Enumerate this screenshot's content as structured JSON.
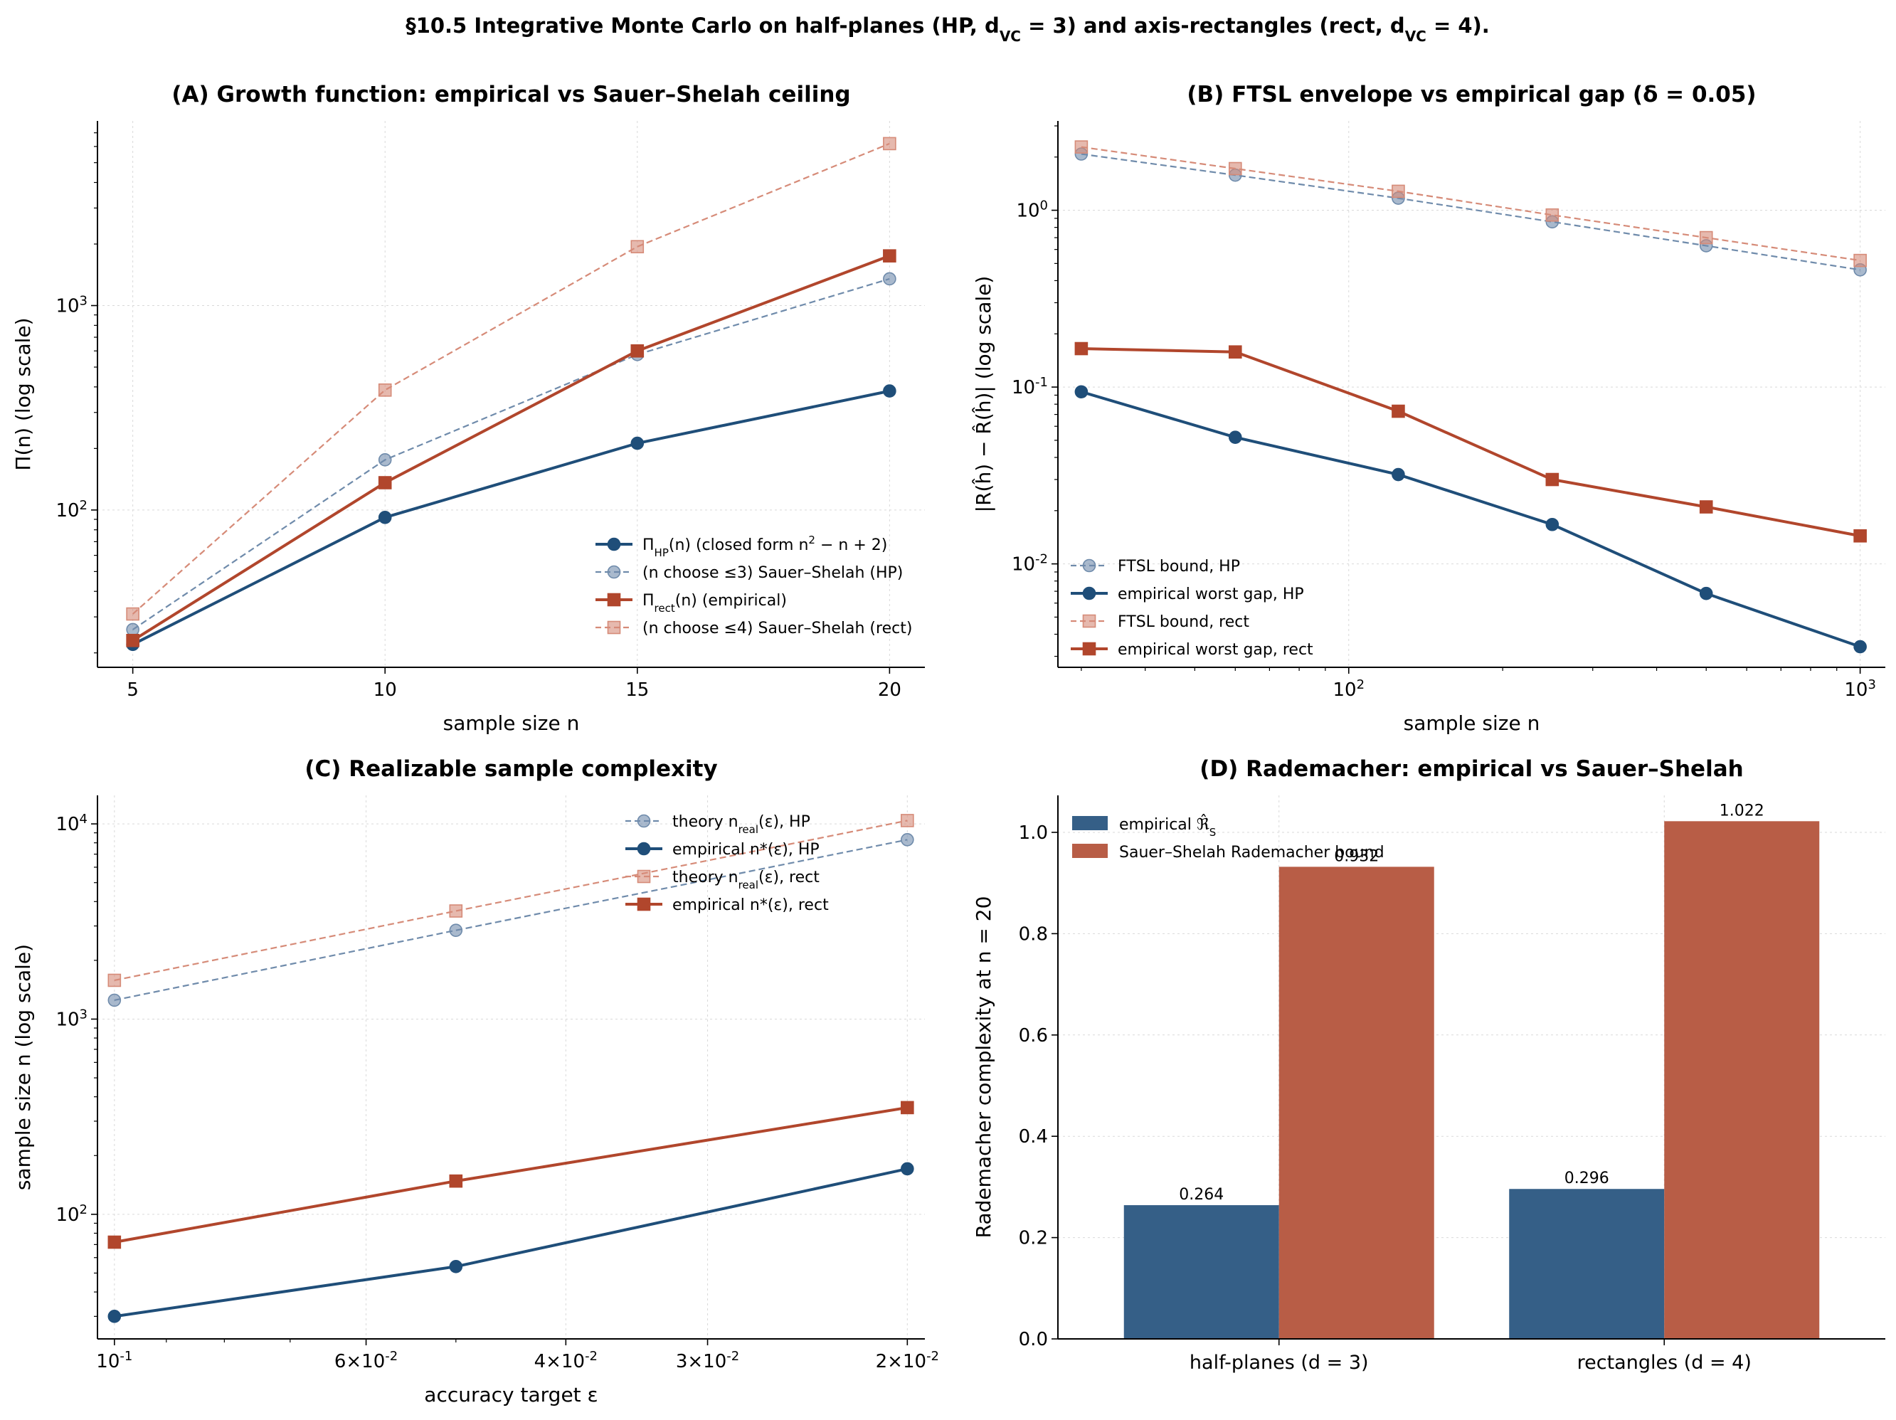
{
  "figure_title": "§10.5  Integrative Monte Carlo on half-planes (HP, d_VC = 3) and axis-rectangles (rect, d_VC = 4).",
  "colors": {
    "hp": "#1f4e79",
    "rect": "#b1462c",
    "hp_light": "#6f8bab",
    "rect_light": "#d68b78",
    "bar_hp": "#355f87",
    "bar_rect": "#b85d46"
  },
  "chart_data": [
    {
      "id": "A",
      "type": "line",
      "title": "(A) Growth function: empirical vs Sauer–Shelah ceiling",
      "xlabel": "sample size n",
      "ylabel": "Π(n)  (log scale)",
      "xscale": "linear",
      "yscale": "log",
      "xlim": [
        4.3,
        20.7
      ],
      "ylim": [
        17,
        8000
      ],
      "xticks": [
        5,
        10,
        15,
        20
      ],
      "xtick_labels": [
        "5",
        "10",
        "15",
        "20"
      ],
      "yticks": [
        100,
        1000
      ],
      "ytick_labels": [
        "10^2",
        "10^3"
      ],
      "grid": true,
      "legend_position": "lower-right",
      "series": [
        {
          "name": "Π_HP(n)  (closed form n^2 − n + 2)",
          "style": "solid",
          "marker": "circle",
          "color": "#1f4e79",
          "x": [
            5,
            10,
            15,
            20
          ],
          "y": [
            22,
            92,
            212,
            382
          ]
        },
        {
          "name": "(n choose ≤3)  Sauer–Shelah (HP)",
          "style": "dashed",
          "marker": "circle",
          "color": "#6f8bab",
          "x": [
            5,
            10,
            15,
            20
          ],
          "y": [
            26,
            176,
            576,
            1351
          ]
        },
        {
          "name": "Π_rect(n)  (empirical)",
          "style": "solid",
          "marker": "square",
          "color": "#b1462c",
          "x": [
            5,
            10,
            15,
            20
          ],
          "y": [
            23,
            136,
            600,
            1750
          ]
        },
        {
          "name": "(n choose ≤4)  Sauer–Shelah (rect)",
          "style": "dashed",
          "marker": "square",
          "color": "#d68b78",
          "x": [
            5,
            10,
            15,
            20
          ],
          "y": [
            31,
            386,
            1941,
            6196
          ]
        }
      ]
    },
    {
      "id": "B",
      "type": "line",
      "title": "(B) FTSL envelope vs empirical gap (δ = 0.05)",
      "xlabel": "sample size n",
      "ylabel": "|R(ĥ) − R̂(ĥ)|  (log scale)",
      "xscale": "log",
      "yscale": "log",
      "xlim": [
        27,
        1120
      ],
      "ylim": [
        0.0026,
        3.2
      ],
      "xticks": [
        100,
        1000
      ],
      "xtick_labels": [
        "10^2",
        "10^3"
      ],
      "yticks": [
        0.01,
        0.1,
        1
      ],
      "ytick_labels": [
        "10^-2",
        "10^-1",
        "10^0"
      ],
      "grid": true,
      "legend_position": "lower-left",
      "series": [
        {
          "name": "FTSL bound, HP",
          "style": "dashed",
          "marker": "circle",
          "color": "#6f8bab",
          "x": [
            30,
            60,
            125,
            250,
            500,
            1000
          ],
          "y": [
            2.08,
            1.58,
            1.17,
            0.86,
            0.63,
            0.46
          ]
        },
        {
          "name": "empirical worst gap, HP",
          "style": "solid",
          "marker": "circle",
          "color": "#1f4e79",
          "x": [
            30,
            60,
            125,
            250,
            500,
            1000
          ],
          "y": [
            0.094,
            0.052,
            0.032,
            0.0167,
            0.0068,
            0.0034
          ]
        },
        {
          "name": "FTSL bound, rect",
          "style": "dashed",
          "marker": "square",
          "color": "#d68b78",
          "x": [
            30,
            60,
            125,
            250,
            500,
            1000
          ],
          "y": [
            2.28,
            1.72,
            1.28,
            0.94,
            0.7,
            0.52
          ]
        },
        {
          "name": "empirical worst gap, rect",
          "style": "solid",
          "marker": "square",
          "color": "#b1462c",
          "x": [
            30,
            60,
            125,
            250,
            500,
            1000
          ],
          "y": [
            0.165,
            0.158,
            0.073,
            0.03,
            0.021,
            0.0144
          ]
        }
      ]
    },
    {
      "id": "C",
      "type": "line",
      "title": "(C) Realizable sample complexity",
      "xlabel": "accuracy target ε",
      "ylabel": "sample size n  (log scale)",
      "xscale": "log-reversed",
      "yscale": "log",
      "xlim": [
        0.1035,
        0.0193
      ],
      "ylim": [
        23,
        14000
      ],
      "xticks": [
        0.1,
        0.06,
        0.04,
        0.03,
        0.02
      ],
      "xtick_labels": [
        "10^-1",
        "6×10^-2",
        "4×10^-2",
        "3×10^-2",
        "2×10^-2"
      ],
      "minor_xticks": [
        0.09,
        0.08,
        0.07,
        0.05
      ],
      "yticks": [
        100,
        1000,
        10000
      ],
      "ytick_labels": [
        "10^2",
        "10^3",
        "10^4"
      ],
      "grid": true,
      "legend_position": "top-right",
      "series": [
        {
          "name": "theory n_real(ε), HP",
          "style": "dashed",
          "marker": "circle",
          "color": "#6f8bab",
          "x": [
            0.1,
            0.05,
            0.02
          ],
          "y": [
            1250,
            2850,
            8300
          ]
        },
        {
          "name": "empirical n*(ε), HP",
          "style": "solid",
          "marker": "circle",
          "color": "#1f4e79",
          "x": [
            0.1,
            0.05,
            0.02
          ],
          "y": [
            30,
            54,
            171
          ]
        },
        {
          "name": "theory n_real(ε), rect",
          "style": "dashed",
          "marker": "square",
          "color": "#d68b78",
          "x": [
            0.1,
            0.05,
            0.02
          ],
          "y": [
            1580,
            3580,
            10400
          ]
        },
        {
          "name": "empirical n*(ε), rect",
          "style": "solid",
          "marker": "square",
          "color": "#b1462c",
          "x": [
            0.1,
            0.05,
            0.02
          ],
          "y": [
            72,
            148,
            352
          ]
        }
      ]
    },
    {
      "id": "D",
      "type": "bar",
      "title": "(D) Rademacher: empirical vs Sauer–Shelah",
      "xlabel": "",
      "ylabel": "Rademacher complexity at n = 20",
      "ylim": [
        0,
        1.073
      ],
      "yticks": [
        0.0,
        0.2,
        0.4,
        0.6,
        0.8,
        1.0
      ],
      "ytick_labels": [
        "0.0",
        "0.2",
        "0.4",
        "0.6",
        "0.8",
        "1.0"
      ],
      "categories": [
        "half-planes (d = 3)",
        "rectangles (d = 4)"
      ],
      "grid": true,
      "legend_position": "top-left",
      "series": [
        {
          "name": "empirical ℜ̂_S",
          "color": "#355f87",
          "values": [
            0.264,
            0.296
          ],
          "labels": [
            "0.264",
            "0.296"
          ]
        },
        {
          "name": "Sauer–Shelah Rademacher bound",
          "color": "#b85d46",
          "values": [
            0.932,
            1.022
          ],
          "labels": [
            "0.932",
            "1.022"
          ]
        }
      ]
    }
  ]
}
